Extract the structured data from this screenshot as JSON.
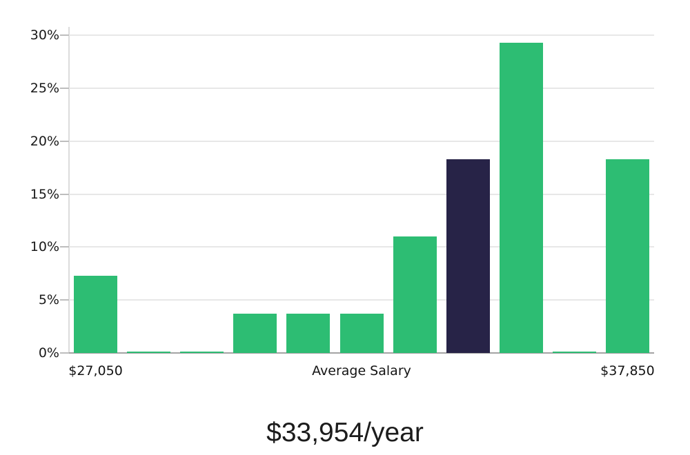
{
  "chart_data": {
    "type": "bar",
    "title": "$33,954/year",
    "title_position": "below-chart",
    "xlabel": "",
    "ylabel": "",
    "ylim": [
      0,
      30
    ],
    "grid": true,
    "legend": "none",
    "y_tick_values": [
      0,
      5,
      10,
      15,
      20,
      25,
      30
    ],
    "y_tick_labels": [
      "0%",
      "5%",
      "10%",
      "15%",
      "20%",
      "25%",
      "30%"
    ],
    "values": [
      7.3,
      0.1,
      0.1,
      3.7,
      3.7,
      3.7,
      11.0,
      18.3,
      29.3,
      0.1,
      18.3
    ],
    "highlight_index": 7,
    "x_axis_labels": [
      {
        "text": "$27,050",
        "anchor": "first-bar"
      },
      {
        "text": "Average Salary",
        "anchor": "plot-center"
      },
      {
        "text": "$37,850",
        "anchor": "last-bar"
      }
    ],
    "colors": {
      "bar": "#2dbd73",
      "highlight_bar": "#272347",
      "gridline": "#e7e7e7",
      "axis": "#a3a3a3",
      "text": "#191919"
    }
  }
}
